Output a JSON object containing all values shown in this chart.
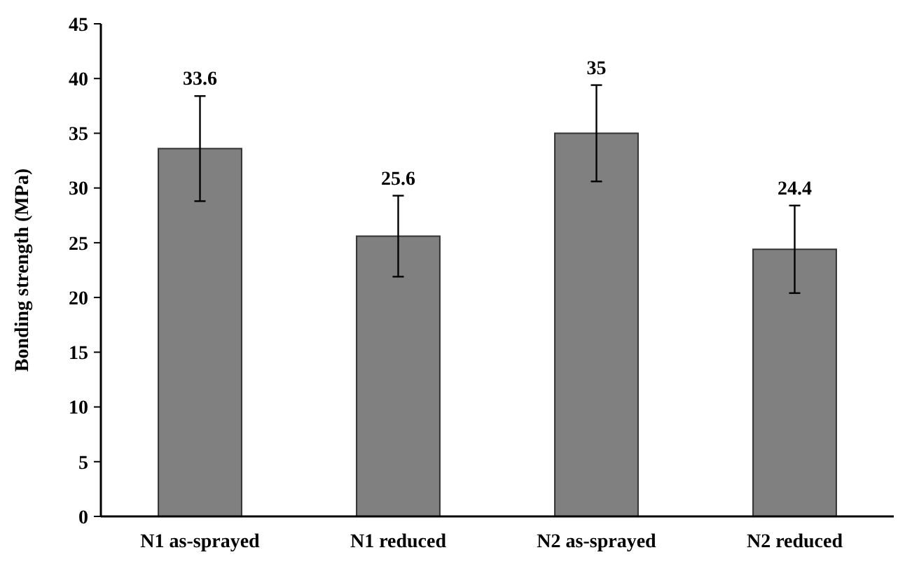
{
  "chart_data": {
    "type": "bar",
    "ylabel": "Bonding strength (MPa)",
    "categories": [
      "N1 as-sprayed",
      "N1 reduced",
      "N2 as-sprayed",
      "N2 reduced"
    ],
    "values": [
      33.6,
      25.6,
      35,
      24.4
    ],
    "errors": [
      4.8,
      3.7,
      4.4,
      4
    ],
    "color": "#808080",
    "ylim": [
      0,
      45
    ],
    "yticks": [
      0,
      5,
      10,
      15,
      20,
      25,
      30,
      35,
      40,
      45
    ],
    "data_labels": true
  }
}
